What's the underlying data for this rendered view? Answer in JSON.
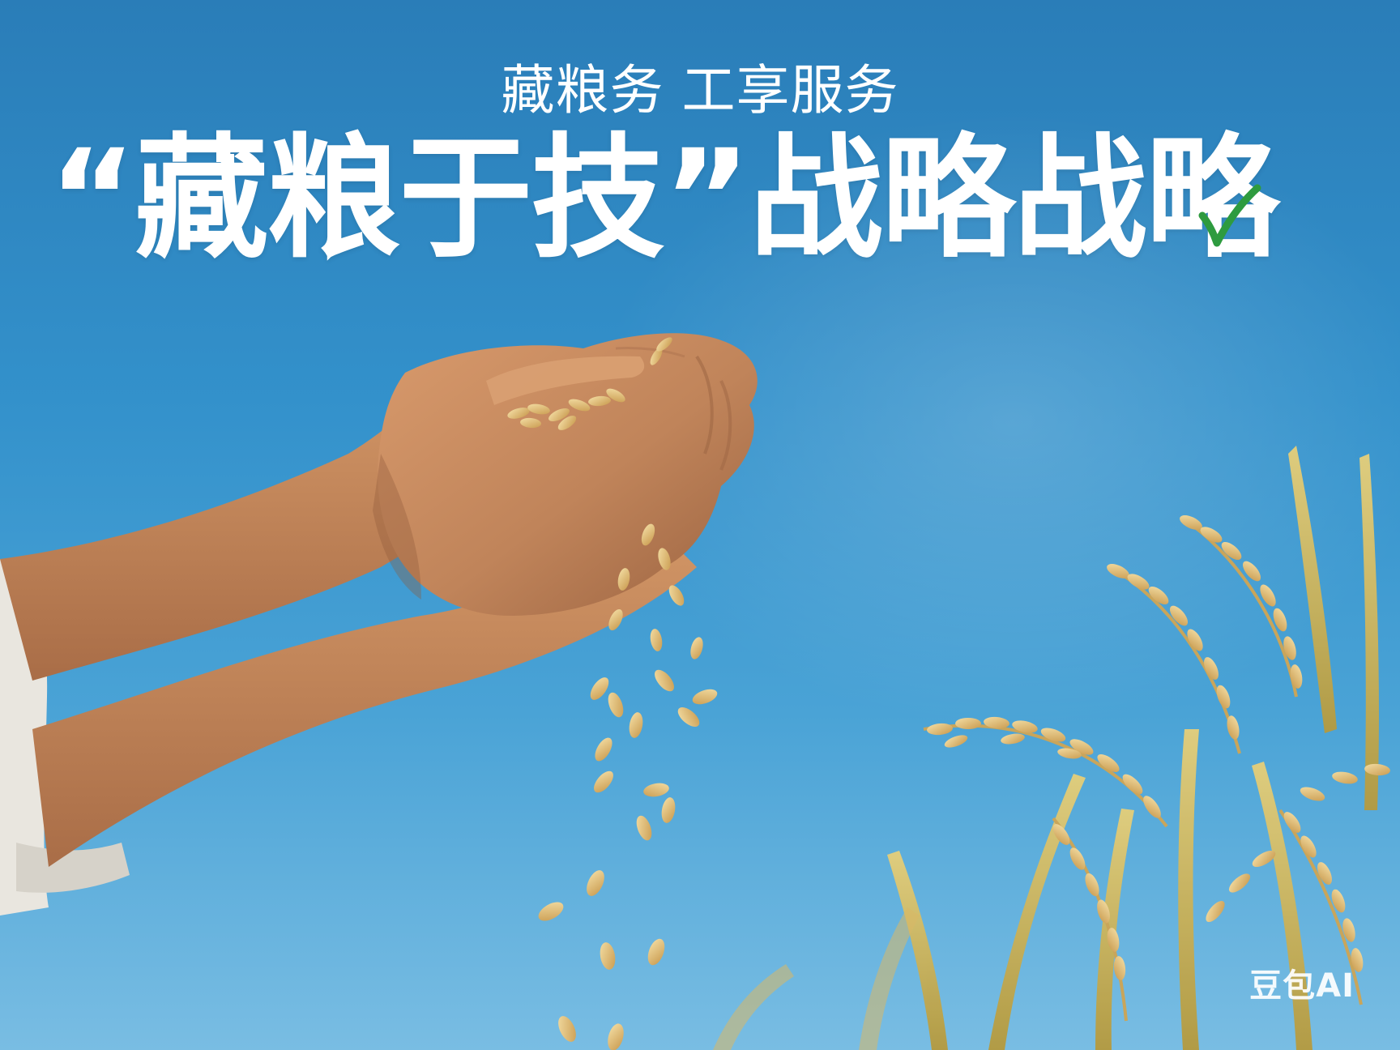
{
  "poster": {
    "subtitle": "藏粮务 工享服务",
    "headline": "“藏粮于技”战略战略",
    "watermark": "豆包AI"
  },
  "colors": {
    "sky_top": "#2a7db8",
    "sky_bottom": "#79bde3",
    "text": "#ffffff",
    "check_mark": "#2e9b3f",
    "grain": "#e8c884",
    "skin": "#c98d62"
  },
  "icons": {
    "check": "check-mark-icon"
  }
}
